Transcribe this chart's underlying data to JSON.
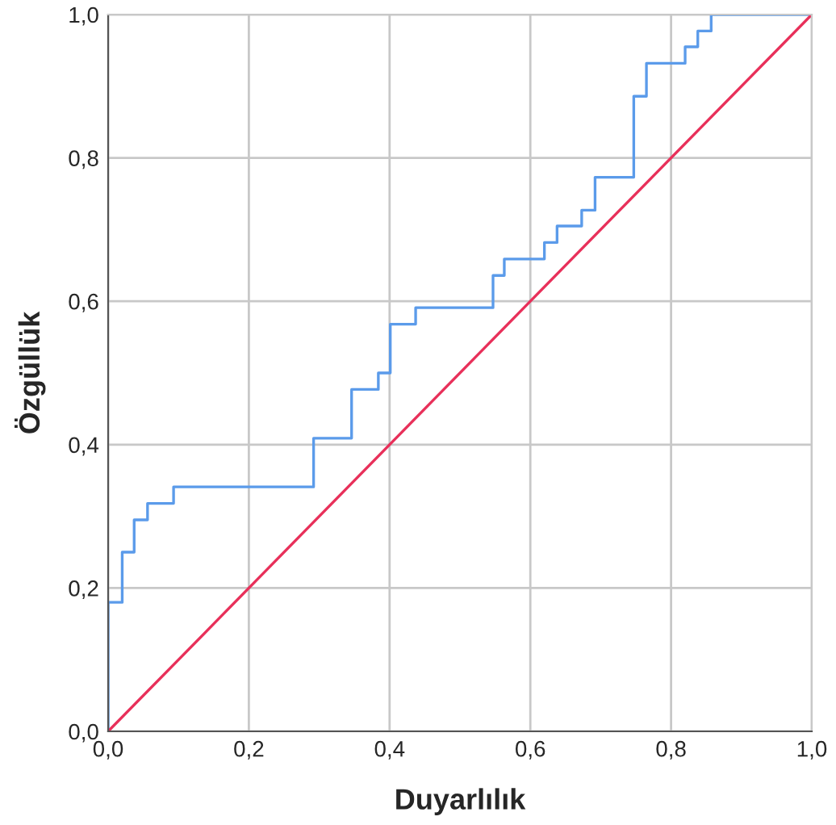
{
  "chart_data": {
    "type": "line",
    "xlabel": "Duyarlılık",
    "ylabel": "Özgüllük",
    "series": [
      {
        "type": "step",
        "color": "#5b9bea",
        "x": [
          0,
          0,
          0.02,
          0.037,
          0.056,
          0.093,
          0.292,
          0.346,
          0.384,
          0.401,
          0.437,
          0.547,
          0.563,
          0.62,
          0.638,
          0.673,
          0.692,
          0.747,
          0.765,
          0.82,
          0.838,
          0.857,
          1
        ],
        "values": [
          0,
          0.18,
          0.25,
          0.295,
          0.318,
          0.341,
          0.409,
          0.477,
          0.5,
          0.568,
          0.591,
          0.636,
          0.659,
          0.682,
          0.705,
          0.727,
          0.773,
          0.886,
          0.932,
          0.955,
          0.977,
          1,
          1
        ]
      },
      {
        "color": "#e8305a",
        "x": [
          0,
          1
        ],
        "values": [
          0,
          1
        ]
      }
    ],
    "xlim": [
      0,
      1
    ],
    "ylim": [
      0,
      1
    ],
    "xticks": [
      {
        "value": 0,
        "label": "0,0"
      },
      {
        "value": 0.2,
        "label": "0,2"
      },
      {
        "value": 0.4,
        "label": "0,4"
      },
      {
        "value": 0.6,
        "label": "0,6"
      },
      {
        "value": 0.8,
        "label": "0,8"
      },
      {
        "value": 1,
        "label": "1,0"
      }
    ],
    "yticks": [
      {
        "value": 0,
        "label": "0,0"
      },
      {
        "value": 0.2,
        "label": "0,2"
      },
      {
        "value": 0.4,
        "label": "0,4"
      },
      {
        "value": 0.6,
        "label": "0,6"
      },
      {
        "value": 0.8,
        "label": "0,8"
      },
      {
        "value": 1,
        "label": "1,0"
      }
    ],
    "grid": true,
    "legend": false
  }
}
